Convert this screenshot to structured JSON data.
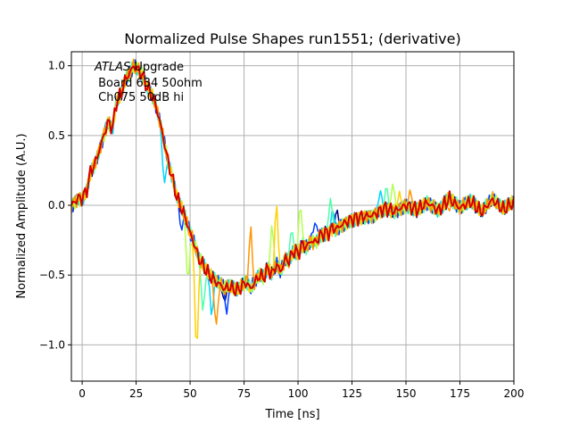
{
  "chart_data": {
    "type": "line",
    "title": "Normalized Pulse Shapes run1551; (derivative)",
    "xlabel": "Time [ns]",
    "ylabel": "Normalized Amplitude (A.U.)",
    "xlim": [
      -5,
      200
    ],
    "ylim": [
      -1.26,
      1.1
    ],
    "xticks": [
      0,
      25,
      50,
      75,
      100,
      125,
      150,
      175,
      200
    ],
    "xtick_labels": [
      "0",
      "25",
      "50",
      "75",
      "100",
      "125",
      "150",
      "175",
      "200"
    ],
    "yticks": [
      1.0,
      0.5,
      0.0,
      -0.5,
      -1.0
    ],
    "ytick_labels": [
      "1.0",
      "0.5",
      "0.0",
      "−0.5",
      "−1.0"
    ],
    "grid": true,
    "annotation": {
      "italic": "ATLAS",
      "line1": " Upgrade",
      "line2": " Board 634 50ohm",
      "line3": " Ch075 50dB hi"
    },
    "colormap": "jet",
    "base_shape": {
      "x": [
        -5,
        -2,
        0,
        2,
        4,
        6,
        8,
        10,
        12,
        14,
        16,
        18,
        20,
        22,
        24,
        26,
        28,
        30,
        32,
        34,
        36,
        38,
        40,
        42,
        44,
        46,
        48,
        50,
        52,
        54,
        56,
        58,
        60,
        62,
        64,
        66,
        68,
        70,
        72,
        74,
        76,
        78,
        80,
        82,
        84,
        86,
        88,
        90,
        92,
        94,
        96,
        98,
        100,
        102,
        104,
        106,
        108,
        110,
        112,
        114,
        116,
        118,
        120,
        125,
        130,
        135,
        140,
        145,
        150,
        155,
        160,
        165,
        170,
        175,
        180,
        185,
        190,
        195,
        200
      ],
      "y": [
        0.0,
        0.05,
        0.05,
        0.1,
        0.25,
        0.3,
        0.4,
        0.5,
        0.6,
        0.55,
        0.75,
        0.8,
        0.9,
        0.95,
        1.0,
        0.97,
        0.93,
        0.85,
        0.8,
        0.72,
        0.6,
        0.45,
        0.3,
        0.18,
        0.05,
        -0.02,
        -0.1,
        -0.2,
        -0.28,
        -0.38,
        -0.43,
        -0.48,
        -0.52,
        -0.55,
        -0.57,
        -0.6,
        -0.58,
        -0.6,
        -0.61,
        -0.58,
        -0.55,
        -0.6,
        -0.55,
        -0.5,
        -0.52,
        -0.45,
        -0.5,
        -0.42,
        -0.48,
        -0.38,
        -0.4,
        -0.32,
        -0.35,
        -0.28,
        -0.3,
        -0.25,
        -0.27,
        -0.22,
        -0.2,
        -0.2,
        -0.16,
        -0.17,
        -0.14,
        -0.1,
        -0.08,
        -0.07,
        -0.02,
        -0.04,
        0.0,
        -0.03,
        0.02,
        -0.04,
        0.05,
        -0.02,
        0.03,
        -0.05,
        0.04,
        -0.03,
        0.02
      ]
    },
    "series": [
      {
        "color": "#00007f",
        "spikes": [
          [
            66,
            -0.7
          ],
          [
            118,
            -0.02
          ]
        ]
      },
      {
        "color": "#0040ff",
        "spikes": [
          [
            46,
            -0.2
          ],
          [
            67,
            -0.78
          ],
          [
            108,
            -0.1
          ]
        ]
      },
      {
        "color": "#00d4ff",
        "spikes": [
          [
            38,
            0.12
          ],
          [
            60,
            -0.82
          ],
          [
            116,
            -0.02
          ],
          [
            138,
            0.12
          ]
        ]
      },
      {
        "color": "#4dffaa",
        "spikes": [
          [
            56,
            -0.8
          ],
          [
            97,
            -0.15
          ],
          [
            115,
            0.05
          ],
          [
            141,
            0.16
          ]
        ]
      },
      {
        "color": "#b2ff4d",
        "spikes": [
          [
            49,
            -0.6
          ],
          [
            88,
            -0.1
          ],
          [
            101,
            0.05
          ],
          [
            144,
            0.18
          ]
        ]
      },
      {
        "color": "#ffd000",
        "spikes": [
          [
            53,
            -1.15
          ],
          [
            90,
            0.05
          ],
          [
            147,
            0.1
          ]
        ]
      },
      {
        "color": "#ff9400",
        "spikes": [
          [
            62,
            -0.9
          ],
          [
            78,
            -0.1
          ],
          [
            152,
            0.12
          ],
          [
            170,
            -0.05
          ]
        ]
      },
      {
        "color": "#d40000",
        "spikes": []
      }
    ]
  }
}
